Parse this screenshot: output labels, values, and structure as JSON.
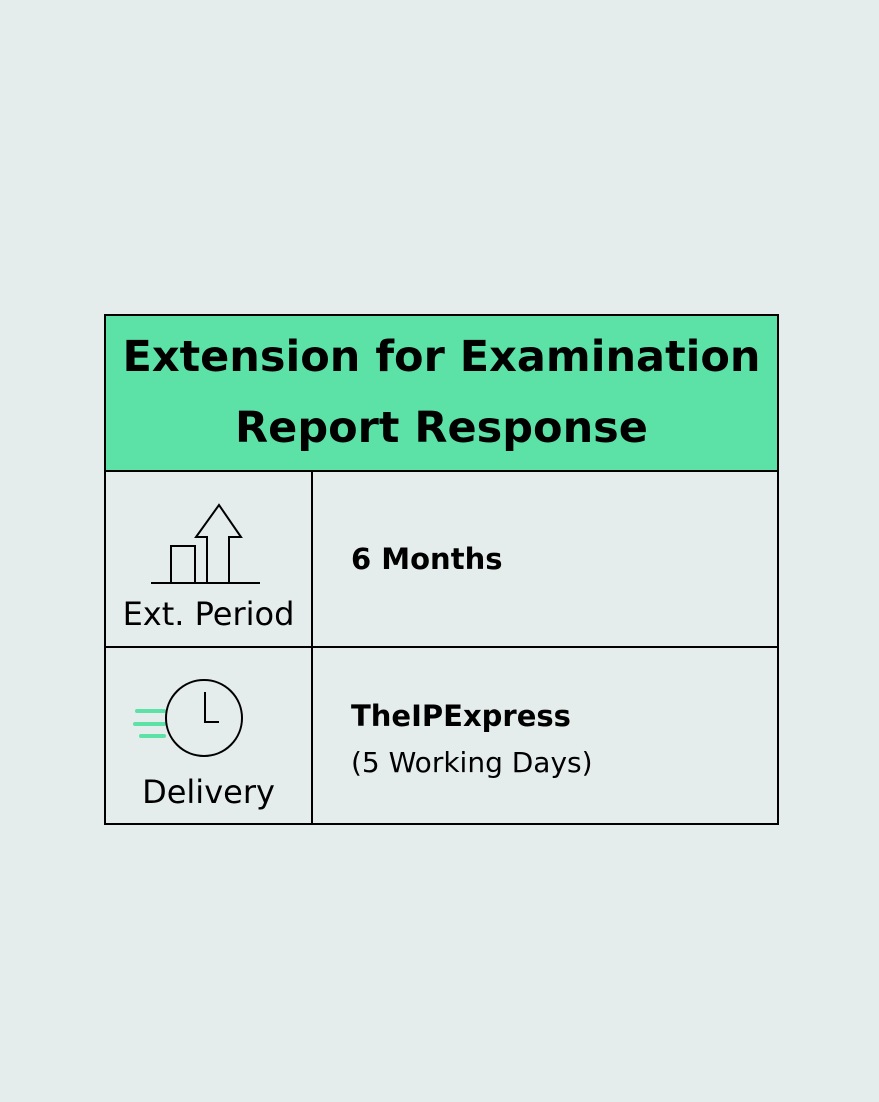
{
  "title_line1": "Extension for Examination",
  "title_line2": "Report Response",
  "rows": [
    {
      "label": "Ext. Period",
      "icon": "growth-arrow-icon",
      "value": "6 Months"
    },
    {
      "label": "Delivery",
      "icon": "fast-clock-icon",
      "value": "TheIPExpress",
      "note": "(5 Working Days)"
    }
  ],
  "colors": {
    "header": "#5ce1a6",
    "background": "#e4ecec",
    "accent": "#5ce1a6"
  }
}
